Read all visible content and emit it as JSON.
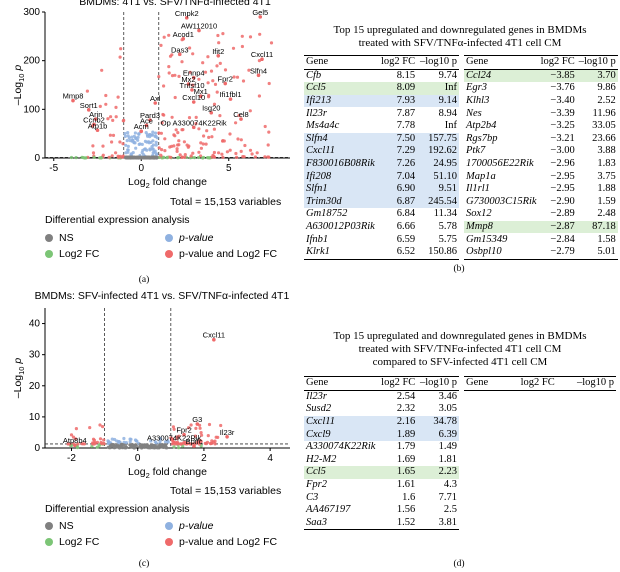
{
  "panel_a": {
    "title": "BMDMs: 4T1 vs. SFV/TNFα-infected 4T1",
    "xlabel": "Log2 fold change",
    "ylabel": "-Log10 p",
    "total": "Total = 15,153 variables",
    "legend_title": "Differential expression analysis",
    "legend": [
      {
        "label": "NS",
        "color": "#808080"
      },
      {
        "label": "Log2 FC",
        "color": "#7cc576"
      },
      {
        "label": "p-value",
        "color": "#8fb1e0"
      },
      {
        "label": "p-value and Log2 FC",
        "color": "#ef6a6a"
      }
    ],
    "panel_label": "(a)"
  },
  "panel_c": {
    "title": "BMDMs: SFV-infected 4T1 vs. SFV/TNFα-infected 4T1",
    "xlabel": "Log2 fold change",
    "ylabel": "-Log10 p",
    "total": "Total = 15,153 variables",
    "legend_title": "Differential expression analysis",
    "legend": [
      {
        "label": "NS",
        "color": "#808080"
      },
      {
        "label": "Log2 FC",
        "color": "#7cc576"
      },
      {
        "label": "p-value",
        "color": "#8fb1e0"
      },
      {
        "label": "p-value and Log2 FC",
        "color": "#ef6a6a"
      }
    ],
    "panel_label": "(c)"
  },
  "chart_data": [
    {
      "type": "scatter",
      "title": "BMDMs: 4T1 vs. SFV/TNFα-infected 4T1",
      "xlabel": "Log2 fold change",
      "ylabel": "-Log10 p",
      "xlim": [
        -5.5,
        8.5
      ],
      "ylim": [
        0,
        300
      ],
      "xticks": [
        -5,
        0,
        5
      ],
      "yticks": [
        0,
        100,
        200,
        300
      ],
      "fc_threshold": [
        -1,
        1
      ],
      "p_threshold": 1.3,
      "labels": [
        {
          "text": "Cmpk2",
          "x": 2.6,
          "y": 288
        },
        {
          "text": "Gel5",
          "x": 6.8,
          "y": 290
        },
        {
          "text": "AW112010",
          "x": 3.3,
          "y": 262
        },
        {
          "text": "Acod1",
          "x": 2.4,
          "y": 245
        },
        {
          "text": "Das3",
          "x": 2.2,
          "y": 213
        },
        {
          "text": "Ifit2",
          "x": 4.4,
          "y": 210
        },
        {
          "text": "Cxcl11",
          "x": 6.9,
          "y": 203
        },
        {
          "text": "Slfn4",
          "x": 6.7,
          "y": 170
        },
        {
          "text": "Ennp4",
          "x": 3.0,
          "y": 165
        },
        {
          "text": "Fpr2",
          "x": 4.8,
          "y": 153
        },
        {
          "text": "Mx2",
          "x": 2.7,
          "y": 152
        },
        {
          "text": "Tnfsf10",
          "x": 2.9,
          "y": 140
        },
        {
          "text": "Mx1",
          "x": 3.4,
          "y": 127
        },
        {
          "text": "Ifi1fbl1",
          "x": 5.1,
          "y": 121
        },
        {
          "text": "Cxcl10",
          "x": 3.0,
          "y": 115
        },
        {
          "text": "Mmp8",
          "x": -3.9,
          "y": 118
        },
        {
          "text": "Sort1",
          "x": -3.0,
          "y": 99
        },
        {
          "text": "Arin",
          "x": -2.6,
          "y": 80
        },
        {
          "text": "Ccnb2",
          "x": -2.7,
          "y": 69
        },
        {
          "text": "Atp1b",
          "x": -2.5,
          "y": 57
        },
        {
          "text": "Axl",
          "x": 0.8,
          "y": 113
        },
        {
          "text": "Pard3",
          "x": 0.5,
          "y": 78
        },
        {
          "text": "Ace",
          "x": 0.3,
          "y": 67
        },
        {
          "text": "Acm",
          "x": 0.0,
          "y": 55
        },
        {
          "text": "Isg20",
          "x": 4.0,
          "y": 93
        },
        {
          "text": "Cel8",
          "x": 5.7,
          "y": 80
        },
        {
          "text": "Op A330074K22Rik",
          "x": 3.0,
          "y": 63
        }
      ]
    },
    {
      "type": "scatter",
      "title": "BMDMs: SFV-infected 4T1 vs. SFV/TNFα-infected 4T1",
      "xlabel": "Log2 fold change",
      "ylabel": "-Log10 p",
      "xlim": [
        -2.8,
        4.6
      ],
      "ylim": [
        0,
        45
      ],
      "xticks": [
        -2,
        0,
        2,
        4
      ],
      "yticks": [
        0,
        10,
        20,
        30,
        40
      ],
      "fc_threshold": [
        -1,
        1
      ],
      "p_threshold": 1.3,
      "labels": [
        {
          "text": "Cxcl11",
          "x": 2.3,
          "y": 34.8
        },
        {
          "text": "G3",
          "x": 1.8,
          "y": 7.7
        },
        {
          "text": "Fpr2",
          "x": 1.4,
          "y": 4.3
        },
        {
          "text": "Il23r",
          "x": 2.7,
          "y": 3.6
        },
        {
          "text": "A330074K22Rik",
          "x": 1.1,
          "y": 1.7
        },
        {
          "text": "Bpifc",
          "x": 1.7,
          "y": 0.6
        },
        {
          "text": "Atp8b4",
          "x": -1.9,
          "y": 0.9
        }
      ]
    }
  ],
  "table_b": {
    "title_line1": "Top 15 upregulated and downregulated genes in BMDMs",
    "title_line2": "treated with SFV/TNFα-infected 4T1 cell CM",
    "header": {
      "gene": "Gene",
      "fc": "log2 FC",
      "p": "–log10 p"
    },
    "up": [
      {
        "gene": "Cfb",
        "fc": "8.15",
        "p": "9.74",
        "hl": ""
      },
      {
        "gene": "Ccl5",
        "fc": "8.09",
        "p": "Inf",
        "hl": "green"
      },
      {
        "gene": "Ifi213",
        "fc": "7.93",
        "p": "9.14",
        "hl": "blue"
      },
      {
        "gene": "Il23r",
        "fc": "7.87",
        "p": "8.94",
        "hl": ""
      },
      {
        "gene": "Ms4a4c",
        "fc": "7.78",
        "p": "Inf",
        "hl": ""
      },
      {
        "gene": "Slfn4",
        "fc": "7.50",
        "p": "157.75",
        "hl": "blue"
      },
      {
        "gene": "Cxcl11",
        "fc": "7.29",
        "p": "192.62",
        "hl": "blue"
      },
      {
        "gene": "F830016B08Rik",
        "fc": "7.26",
        "p": "24.95",
        "hl": "blue"
      },
      {
        "gene": "Ifi208",
        "fc": "7.04",
        "p": "51.10",
        "hl": "blue"
      },
      {
        "gene": "Slfn1",
        "fc": "6.90",
        "p": "9.51",
        "hl": "blue"
      },
      {
        "gene": "Trim30d",
        "fc": "6.87",
        "p": "245.54",
        "hl": "blue"
      },
      {
        "gene": "Gm18752",
        "fc": "6.84",
        "p": "11.34",
        "hl": ""
      },
      {
        "gene": "A630012P03Rik",
        "fc": "6.66",
        "p": "5.78",
        "hl": ""
      },
      {
        "gene": "Ifnb1",
        "fc": "6.59",
        "p": "5.75",
        "hl": ""
      },
      {
        "gene": "Klrk1",
        "fc": "6.52",
        "p": "150.86",
        "hl": ""
      }
    ],
    "down": [
      {
        "gene": "Ccl24",
        "fc": "−3.85",
        "p": "3.70",
        "hl": "green"
      },
      {
        "gene": "Egr3",
        "fc": "−3.76",
        "p": "9.86",
        "hl": ""
      },
      {
        "gene": "Klhl3",
        "fc": "−3.40",
        "p": "2.52",
        "hl": ""
      },
      {
        "gene": "Nes",
        "fc": "−3.39",
        "p": "11.96",
        "hl": ""
      },
      {
        "gene": "Atp2b4",
        "fc": "−3.25",
        "p": "33.05",
        "hl": ""
      },
      {
        "gene": "Rgs7bp",
        "fc": "−3.21",
        "p": "23.66",
        "hl": ""
      },
      {
        "gene": "Ptk7",
        "fc": "−3.00",
        "p": "3.88",
        "hl": ""
      },
      {
        "gene": "1700056E22Rik",
        "fc": "−2.96",
        "p": "1.83",
        "hl": ""
      },
      {
        "gene": "Map1a",
        "fc": "−2.95",
        "p": "3.75",
        "hl": ""
      },
      {
        "gene": "Il1rl1",
        "fc": "−2.95",
        "p": "1.88",
        "hl": ""
      },
      {
        "gene": "G730003C15Rik",
        "fc": "−2.90",
        "p": "1.59",
        "hl": ""
      },
      {
        "gene": "Sox12",
        "fc": "−2.89",
        "p": "2.48",
        "hl": ""
      },
      {
        "gene": "Mmp8",
        "fc": "−2.87",
        "p": "87.18",
        "hl": "green"
      },
      {
        "gene": "Gm15349",
        "fc": "−2.84",
        "p": "1.58",
        "hl": ""
      },
      {
        "gene": "Osbpl10",
        "fc": "−2.79",
        "p": "5.01",
        "hl": ""
      }
    ],
    "panel_label": "(b)"
  },
  "table_d": {
    "title_line1": "Top 15 upregulated and downregulated genes in BMDMs",
    "title_line2": "treated with SFV/TNFα-infected 4T1 cell CM",
    "title_line3": "compared to SFV-infected 4T1 cell CM",
    "header": {
      "gene": "Gene",
      "fc": "log2 FC",
      "p": "–log10 p"
    },
    "up": [
      {
        "gene": "Il23r",
        "fc": "2.54",
        "p": "3.46",
        "hl": ""
      },
      {
        "gene": "Susd2",
        "fc": "2.32",
        "p": "3.05",
        "hl": ""
      },
      {
        "gene": "Cxcl11",
        "fc": "2.16",
        "p": "34.78",
        "hl": "blue"
      },
      {
        "gene": "Cxcl9",
        "fc": "1.89",
        "p": "6.39",
        "hl": "blue"
      },
      {
        "gene": "A330074K22Rik",
        "fc": "1.79",
        "p": "1.49",
        "hl": ""
      },
      {
        "gene": "H2-M2",
        "fc": "1.69",
        "p": "1.81",
        "hl": ""
      },
      {
        "gene": "Ccl5",
        "fc": "1.65",
        "p": "2.23",
        "hl": "green"
      },
      {
        "gene": "Fpr2",
        "fc": "1.61",
        "p": "4.3",
        "hl": ""
      },
      {
        "gene": "C3",
        "fc": "1.6",
        "p": "7.71",
        "hl": ""
      },
      {
        "gene": "AA467197",
        "fc": "1.56",
        "p": "2.5",
        "hl": ""
      },
      {
        "gene": "Saa3",
        "fc": "1.52",
        "p": "3.81",
        "hl": ""
      }
    ],
    "panel_label": "(d)"
  }
}
